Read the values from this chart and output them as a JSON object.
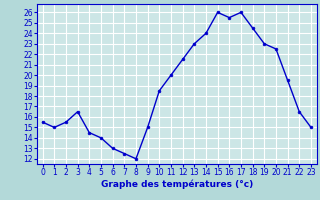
{
  "hours": [
    0,
    1,
    2,
    3,
    4,
    5,
    6,
    7,
    8,
    9,
    10,
    11,
    12,
    13,
    14,
    15,
    16,
    17,
    18,
    19,
    20,
    21,
    22,
    23
  ],
  "temps": [
    15.5,
    15.0,
    15.5,
    16.5,
    14.5,
    14.0,
    13.0,
    12.5,
    12.0,
    15.0,
    18.5,
    20.0,
    21.5,
    23.0,
    24.0,
    26.0,
    25.5,
    26.0,
    24.5,
    23.0,
    22.5,
    19.5,
    16.5,
    15.0
  ],
  "line_color": "#0000cc",
  "marker": "o",
  "marker_size": 2.0,
  "bg_color": "#b3d9d9",
  "plot_bg_color": "#cce6e6",
  "grid_color": "#ffffff",
  "xlabel": "Graphe des températures (°c)",
  "xlabel_color": "#0000cc",
  "tick_color": "#0000cc",
  "ylim": [
    11.5,
    26.8
  ],
  "xlim": [
    -0.5,
    23.5
  ],
  "yticks": [
    12,
    13,
    14,
    15,
    16,
    17,
    18,
    19,
    20,
    21,
    22,
    23,
    24,
    25,
    26
  ],
  "xticks": [
    0,
    1,
    2,
    3,
    4,
    5,
    6,
    7,
    8,
    9,
    10,
    11,
    12,
    13,
    14,
    15,
    16,
    17,
    18,
    19,
    20,
    21,
    22,
    23
  ],
  "linewidth": 1.0,
  "spine_color": "#0000cc",
  "xlabel_fontsize": 6.5,
  "tick_fontsize": 5.5
}
